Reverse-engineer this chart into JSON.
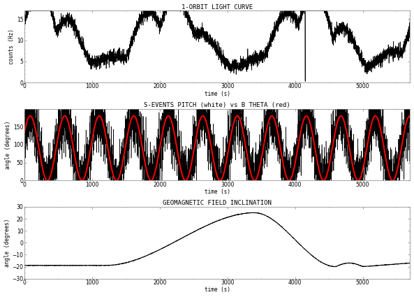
{
  "title1": "1-ORBIT LIGHT CURVE",
  "title2": "S-EVENTS PITCH (white) vs B THETA (red)",
  "title3": "GEOMAGNETIC FIELD INCLINATION",
  "xlabel": "time (s)",
  "ylabel1": "counts (Hz)",
  "ylabel2": "angle (degrees)",
  "ylabel3": "angle (degrees)",
  "xlim": [
    0,
    5700
  ],
  "ylim1": [
    0,
    17
  ],
  "ylim2": [
    0,
    200
  ],
  "ylim3": [
    -30,
    30
  ],
  "yticks1": [
    0,
    5,
    10,
    15
  ],
  "yticks2": [
    0,
    50,
    100,
    150
  ],
  "yticks3": [
    -30,
    -20,
    -10,
    0,
    10,
    20,
    30
  ],
  "xticks": [
    0,
    1000,
    2000,
    3000,
    4000,
    5000
  ],
  "bg_color": "#ffffff",
  "plot_bg": "#ffffff",
  "line_color1": "black",
  "line_color2_black": "black",
  "line_color2_red": "red",
  "line_color3": "black",
  "lw1": 0.5,
  "lw2_black": 0.4,
  "lw2_red": 1.4,
  "lw3": 0.7,
  "dip_time": 4150,
  "spin_period": 510,
  "orbit_period": 5700,
  "title_fontsize": 6.5,
  "label_fontsize": 5.5,
  "tick_fontsize": 5.5
}
